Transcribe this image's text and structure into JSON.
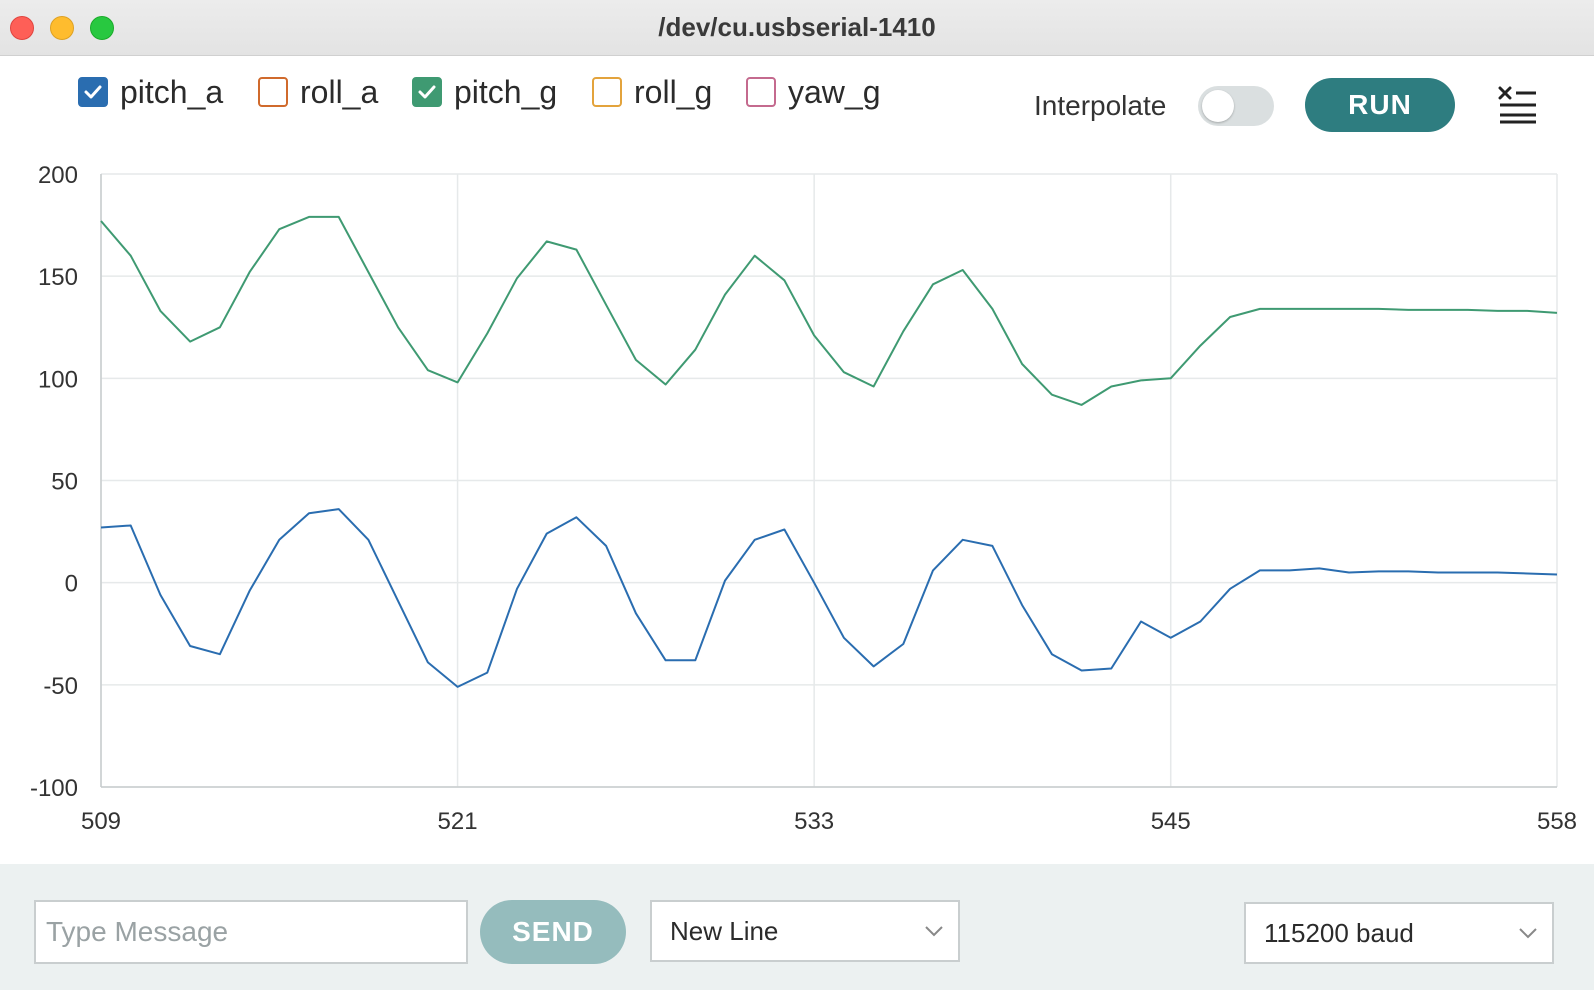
{
  "window": {
    "title": "/dev/cu.usbserial-1410",
    "controls": [
      "close",
      "minimize",
      "zoom"
    ]
  },
  "legend": [
    {
      "label": "pitch_a",
      "checked": true,
      "color": "#2a6db0"
    },
    {
      "label": "roll_a",
      "checked": false,
      "color": "#d06a2c"
    },
    {
      "label": "pitch_g",
      "checked": true,
      "color": "#3f9a72"
    },
    {
      "label": "roll_g",
      "checked": false,
      "color": "#e3a33c"
    },
    {
      "label": "yaw_g",
      "checked": false,
      "color": "#c46a8e"
    }
  ],
  "toolbar": {
    "interpolate_label": "Interpolate",
    "interpolate_on": false,
    "run_label": "RUN",
    "clear_icon": "clear-list-icon"
  },
  "chart_data": {
    "type": "line",
    "x_ticks": [
      509,
      521,
      533,
      545,
      558
    ],
    "y_ticks": [
      200,
      150,
      100,
      50,
      0,
      -50,
      -100
    ],
    "xlim": [
      509,
      558
    ],
    "ylim": [
      -100,
      200
    ],
    "grid": true,
    "x": [
      509,
      510,
      511,
      512,
      513,
      514,
      515,
      516,
      517,
      518,
      519,
      520,
      521,
      522,
      523,
      524,
      525,
      526,
      527,
      528,
      529,
      530,
      531,
      532,
      533,
      534,
      535,
      536,
      537,
      538,
      539,
      540,
      541,
      542,
      543,
      544,
      545,
      546,
      547,
      548,
      549,
      550,
      551,
      552,
      553,
      554,
      555,
      556,
      557,
      558
    ],
    "series": [
      {
        "name": "pitch_g",
        "color": "#3f9a72",
        "values": [
          177,
          160,
          133,
          118,
          125,
          152,
          173,
          179,
          179,
          152,
          125,
          104,
          98,
          122,
          149,
          167,
          163,
          136,
          109,
          97,
          114,
          141,
          160,
          148,
          121,
          103,
          96,
          123,
          146,
          153,
          134,
          107,
          92,
          87,
          96,
          99,
          100,
          116,
          130,
          134,
          134,
          134,
          134,
          134,
          133.5,
          133.5,
          133.5,
          133,
          133,
          132
        ]
      },
      {
        "name": "pitch_a",
        "color": "#2a6db0",
        "values": [
          27,
          28,
          -6,
          -31,
          -35,
          -4,
          21,
          34,
          36,
          21,
          -9,
          -39,
          -51,
          -44,
          -3,
          24,
          32,
          18,
          -15,
          -38,
          -38,
          1,
          21,
          26,
          0,
          -27,
          -41,
          -30,
          6,
          21,
          18,
          -11,
          -35,
          -43,
          -42,
          -19,
          -27,
          -19,
          -3,
          6,
          6,
          7,
          5,
          5.5,
          5.5,
          5,
          5,
          5,
          4.5,
          4
        ]
      }
    ]
  },
  "bottom": {
    "message_placeholder": "Type Message",
    "message_value": "",
    "send_label": "SEND",
    "line_ending": "New Line",
    "baud_rate": "115200 baud"
  }
}
